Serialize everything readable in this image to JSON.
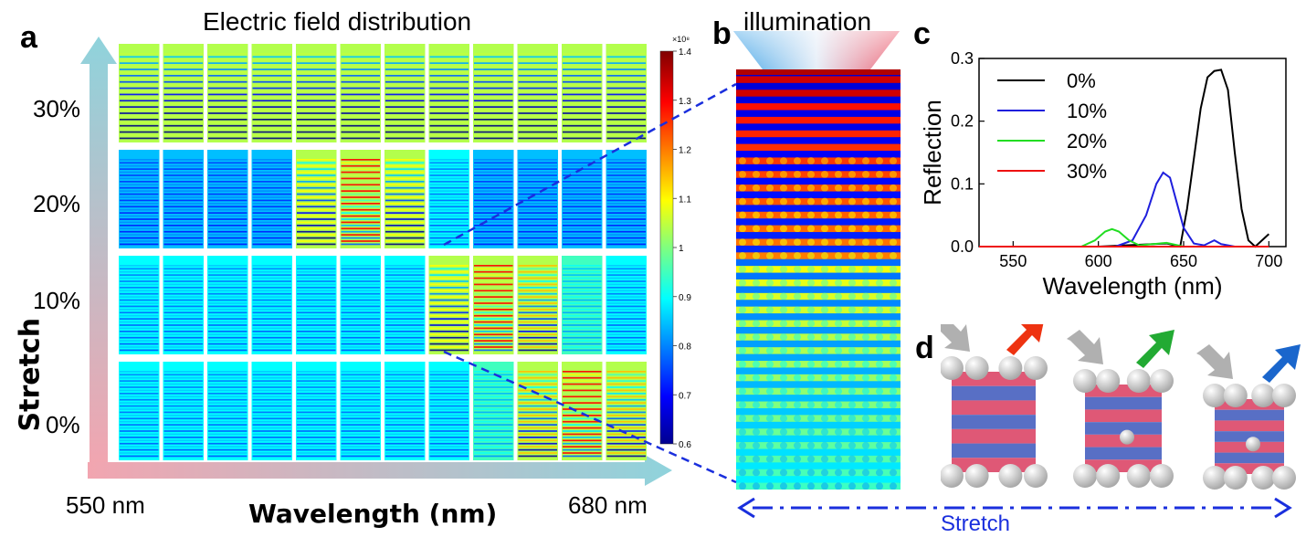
{
  "panel_a": {
    "letter": "a",
    "title": "Electric field distribution",
    "y_axis_label": "Stretch",
    "row_labels": [
      "30%",
      "20%",
      "10%",
      "0%"
    ],
    "x_left_label": "550 nm",
    "x_right_label": "680 nm",
    "x_axis_label": "Wavelength (nm)",
    "colorbar": {
      "exponent": "×10⁸",
      "ticks": [
        "1.4",
        "1.3",
        "1.2",
        "1.1",
        "1",
        "0.9",
        "0.8",
        "0.7",
        "0.6"
      ],
      "min": 0.6,
      "max": 1.4
    },
    "field_intensity": [
      [
        1.05,
        1.05,
        1.05,
        1.05,
        1.05,
        1.05,
        1.05,
        1.05,
        1.05,
        1.05,
        1.05,
        1.05
      ],
      [
        0.85,
        0.85,
        0.85,
        0.85,
        1.1,
        1.3,
        1.1,
        0.9,
        0.85,
        0.85,
        0.85,
        0.85
      ],
      [
        0.9,
        0.9,
        0.9,
        0.9,
        0.9,
        0.9,
        0.9,
        1.1,
        1.3,
        1.15,
        0.95,
        0.9
      ],
      [
        0.9,
        0.9,
        0.9,
        0.9,
        0.9,
        0.9,
        0.9,
        0.9,
        0.95,
        1.15,
        1.3,
        1.15
      ]
    ]
  },
  "panel_b": {
    "letter": "b",
    "title": "illumination"
  },
  "panel_c": {
    "letter": "c",
    "chart_data": {
      "type": "line",
      "xlabel": "Wavelength (nm)",
      "ylabel": "Reflection",
      "xlim": [
        530,
        710
      ],
      "ylim": [
        0,
        0.3
      ],
      "xticks": [
        550,
        600,
        650,
        700
      ],
      "yticks": [
        0.0,
        0.1,
        0.2,
        0.3
      ],
      "legend_position": "top-left",
      "series": [
        {
          "name": "0%",
          "color": "#000000",
          "x": [
            530,
            600,
            640,
            648,
            652,
            656,
            660,
            664,
            668,
            672,
            676,
            680,
            684,
            688,
            692,
            700
          ],
          "y": [
            0.0,
            0.0,
            0.005,
            0.0,
            0.06,
            0.14,
            0.22,
            0.27,
            0.28,
            0.282,
            0.25,
            0.15,
            0.06,
            0.01,
            0.0,
            0.02
          ]
        },
        {
          "name": "10%",
          "color": "#1f1fdd",
          "x": [
            530,
            610,
            620,
            628,
            634,
            638,
            642,
            646,
            650,
            656,
            662,
            668,
            672,
            680,
            700
          ],
          "y": [
            0.0,
            0.0,
            0.01,
            0.05,
            0.1,
            0.118,
            0.11,
            0.07,
            0.03,
            0.005,
            0.002,
            0.01,
            0.004,
            0.0,
            0.0
          ]
        },
        {
          "name": "20%",
          "color": "#22dd22",
          "x": [
            530,
            590,
            598,
            604,
            608,
            612,
            618,
            624,
            632,
            640,
            650,
            700
          ],
          "y": [
            0.0,
            0.0,
            0.01,
            0.024,
            0.028,
            0.024,
            0.01,
            0.002,
            0.004,
            0.006,
            0.0,
            0.0
          ]
        },
        {
          "name": "30%",
          "color": "#ee1111",
          "x": [
            530,
            560,
            600,
            640,
            700
          ],
          "y": [
            0.0,
            0.0,
            0.0,
            0.0,
            0.0
          ]
        }
      ]
    }
  },
  "panel_d": {
    "letter": "d",
    "bottom_label": "Stretch",
    "arrow_colors": [
      "#ee3311",
      "#22aa33",
      "#1a66cc"
    ]
  }
}
